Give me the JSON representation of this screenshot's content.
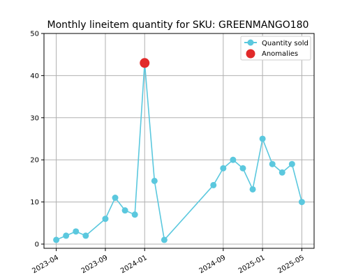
{
  "chart_data": {
    "type": "line",
    "title": "Monthly lineitem quantity for SKU: GREENMANGO180",
    "xlabel": "",
    "ylabel": "",
    "x_axis_type": "date",
    "x_tick_labels": [
      "2023-04",
      "2023-09",
      "2024-01",
      "2024-09",
      "2025-01",
      "2025-05"
    ],
    "ylim": [
      -1,
      50
    ],
    "y_ticks": [
      0,
      10,
      20,
      30,
      40,
      50
    ],
    "grid": true,
    "legend_position": "top-right",
    "series": [
      {
        "name": "Quantity sold",
        "color": "#5bc8de",
        "points": [
          {
            "x": "2023-04",
            "y": 1
          },
          {
            "x": "2023-05",
            "y": 2
          },
          {
            "x": "2023-06",
            "y": 3
          },
          {
            "x": "2023-07",
            "y": 2
          },
          {
            "x": "2023-09",
            "y": 6
          },
          {
            "x": "2023-10",
            "y": 11
          },
          {
            "x": "2023-11",
            "y": 8
          },
          {
            "x": "2023-12",
            "y": 7
          },
          {
            "x": "2024-01",
            "y": 43
          },
          {
            "x": "2024-02",
            "y": 15
          },
          {
            "x": "2024-03",
            "y": 1
          },
          {
            "x": "2024-08",
            "y": 14
          },
          {
            "x": "2024-09",
            "y": 18
          },
          {
            "x": "2024-10",
            "y": 20
          },
          {
            "x": "2024-11",
            "y": 18
          },
          {
            "x": "2024-12",
            "y": 13
          },
          {
            "x": "2025-01",
            "y": 25
          },
          {
            "x": "2025-02",
            "y": 19
          },
          {
            "x": "2025-03",
            "y": 17
          },
          {
            "x": "2025-04",
            "y": 19
          },
          {
            "x": "2025-05",
            "y": 10
          }
        ]
      }
    ],
    "anomalies": {
      "name": "Anomalies",
      "color": "#e12a2a",
      "points": [
        {
          "x": "2024-01",
          "y": 43
        }
      ]
    }
  }
}
